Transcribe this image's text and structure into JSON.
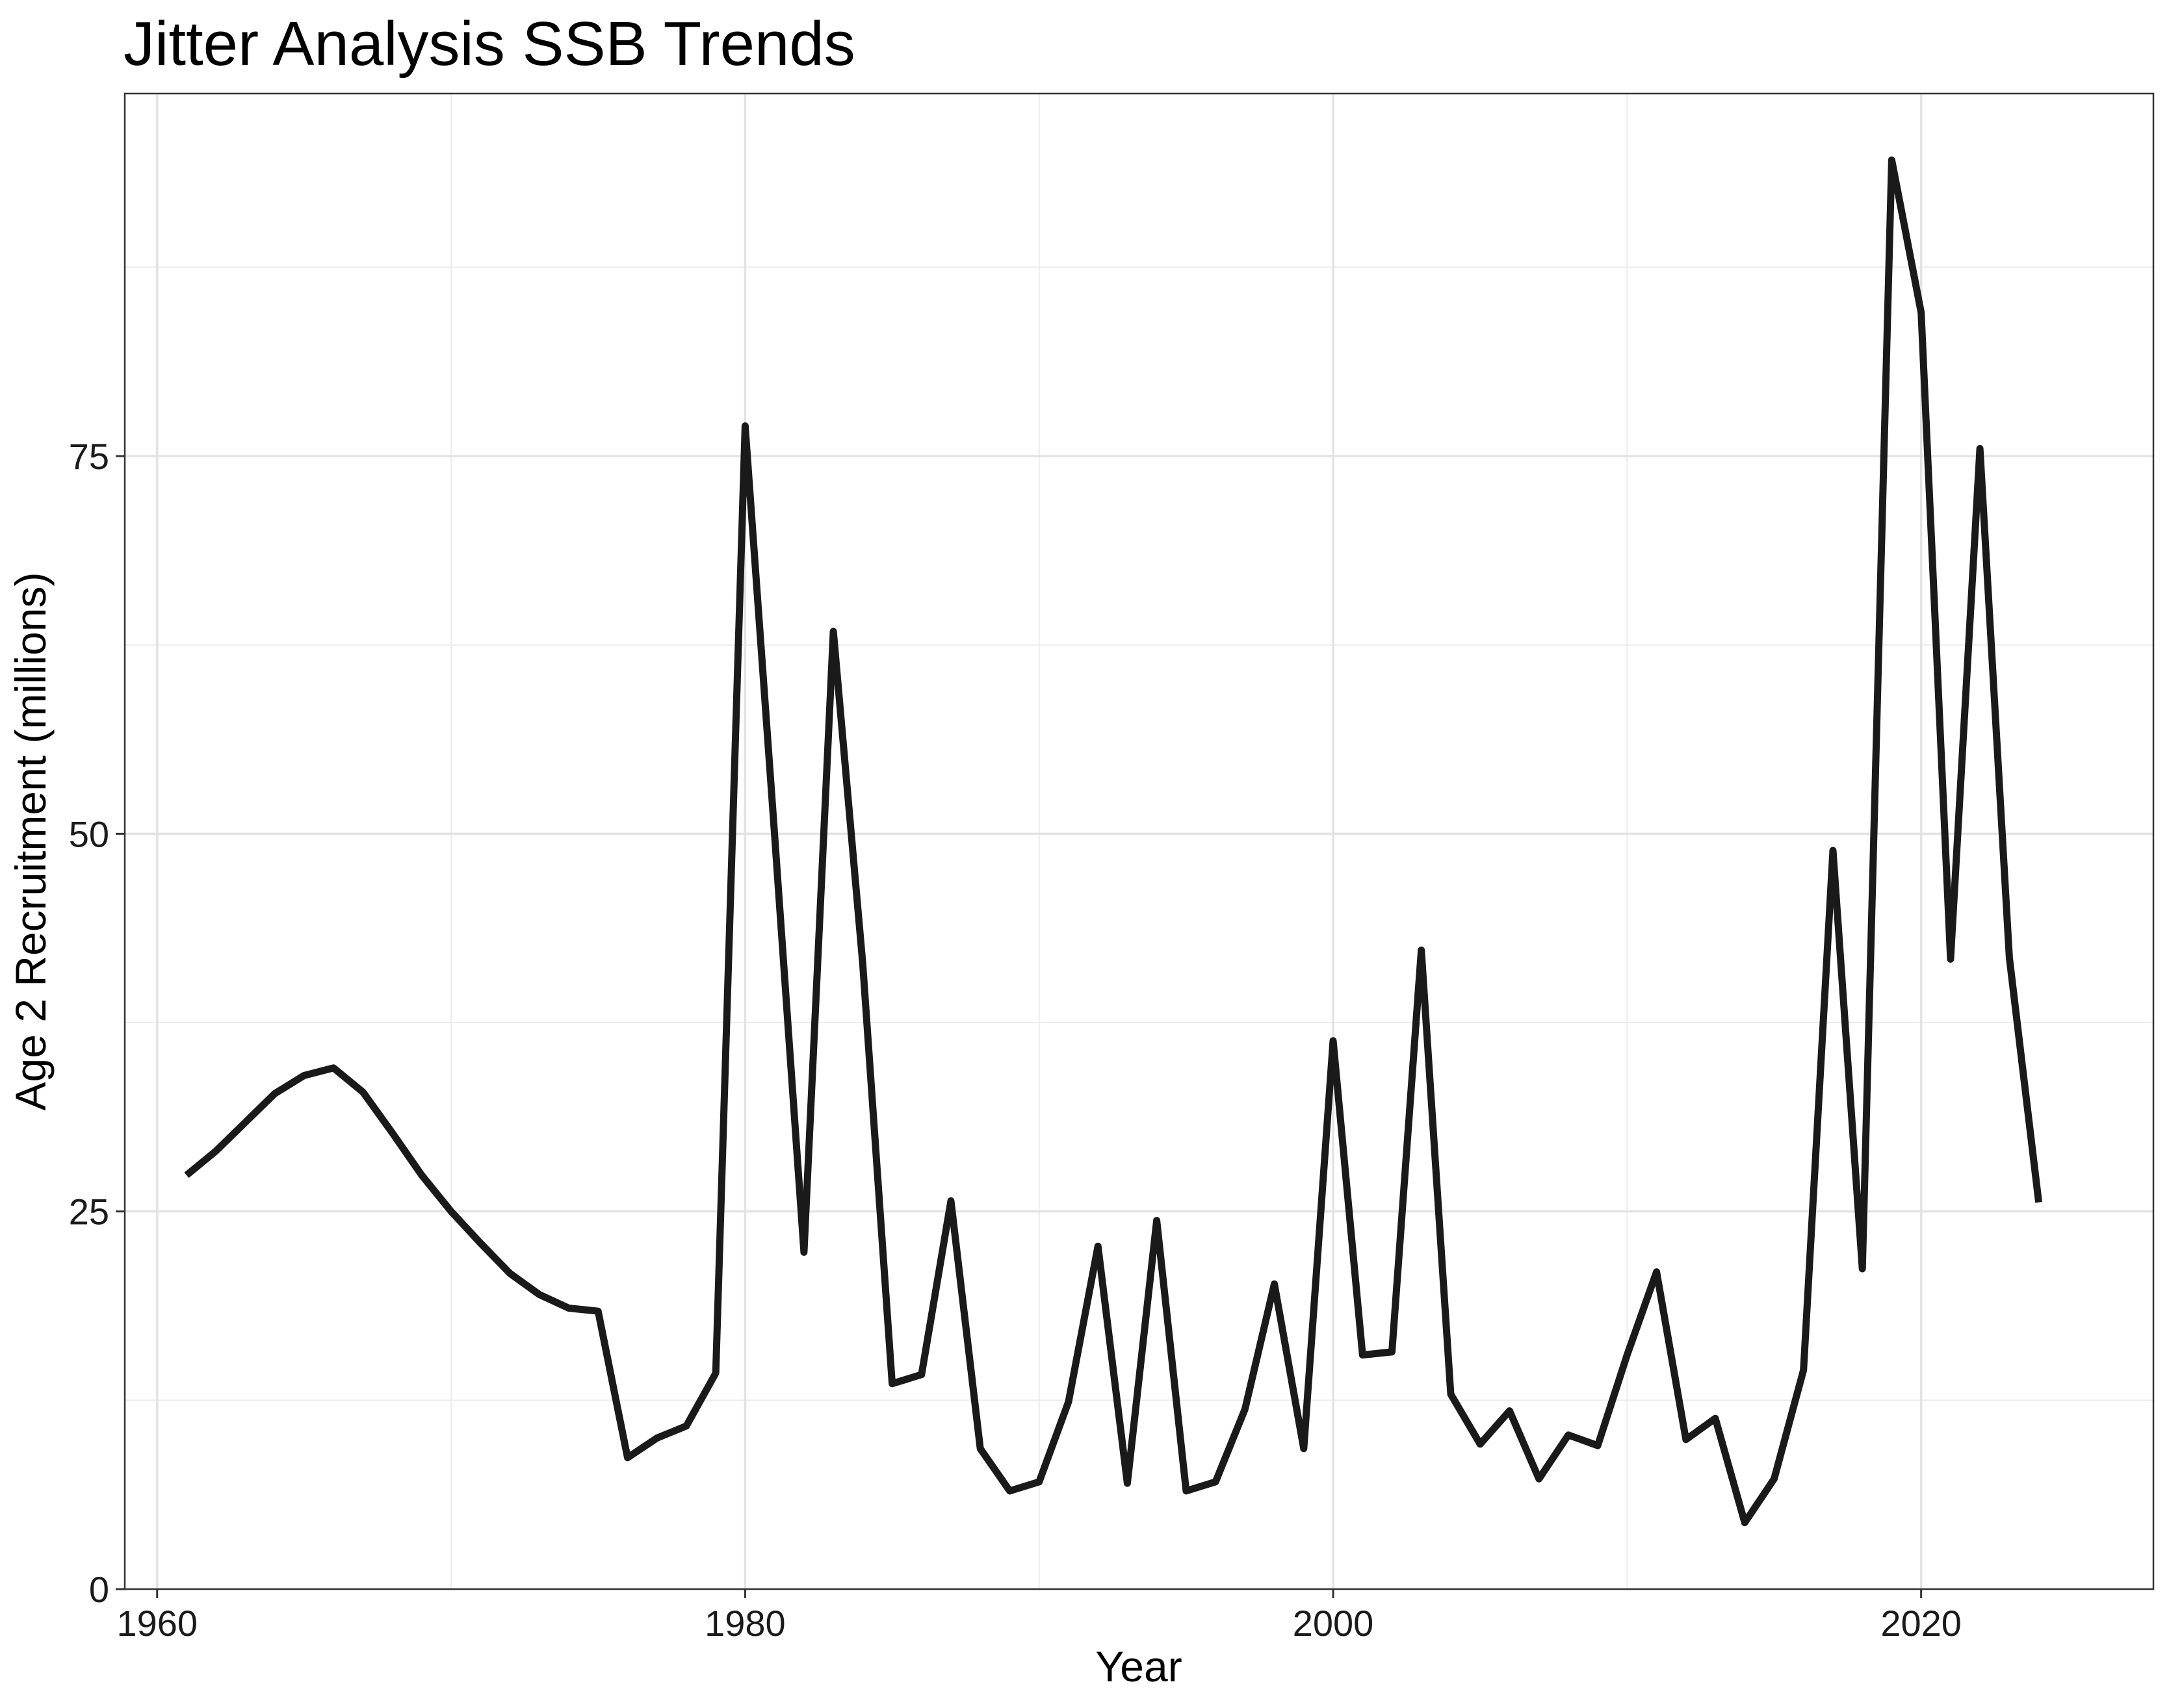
{
  "chart_data": {
    "type": "line",
    "title": "Jitter Analysis SSB Trends",
    "xlabel": "Year",
    "ylabel": "Age 2 Recruitment (millions)",
    "xlim": [
      1958.9,
      2027.9
    ],
    "ylim": [
      0,
      99
    ],
    "x_ticks": [
      1960,
      1980,
      2000,
      2020
    ],
    "x_tick_labels": [
      "1960",
      "1980",
      "2000",
      "2020"
    ],
    "y_ticks": [
      0,
      25,
      50,
      75
    ],
    "y_tick_labels": [
      "0",
      "25",
      "50",
      "75"
    ],
    "x_minor_gridlines": [
      1970,
      1990,
      2010
    ],
    "y_minor_gridlines": [
      12.5,
      37.5,
      62.5,
      87.5
    ],
    "grid": true,
    "legend": "none",
    "series": [
      {
        "color": "#1a1a1a",
        "x": [
          1961,
          1962,
          1963,
          1964,
          1965,
          1966,
          1967,
          1968,
          1969,
          1970,
          1971,
          1972,
          1973,
          1974,
          1975,
          1976,
          1977,
          1978,
          1979,
          1980,
          1981,
          1982,
          1983,
          1984,
          1985,
          1986,
          1987,
          1988,
          1989,
          1990,
          1991,
          1992,
          1993,
          1994,
          1995,
          1996,
          1997,
          1998,
          1999,
          2000,
          2001,
          2002,
          2003,
          2004,
          2005,
          2006,
          2007,
          2008,
          2009,
          2010,
          2011,
          2012,
          2013,
          2014,
          2015,
          2016,
          2017,
          2018,
          2019,
          2020,
          2021,
          2022,
          2023,
          2024
        ],
        "y": [
          27.4,
          29.0,
          30.9,
          32.8,
          34.0,
          34.5,
          32.9,
          30.2,
          27.4,
          25.0,
          22.9,
          20.9,
          19.5,
          18.6,
          18.4,
          8.7,
          10.0,
          10.8,
          14.3,
          77.0,
          50.0,
          22.3,
          63.4,
          41.4,
          13.6,
          14.2,
          25.7,
          9.3,
          6.5,
          7.1,
          12.4,
          22.7,
          7.0,
          24.4,
          6.5,
          7.1,
          11.9,
          20.2,
          9.3,
          36.3,
          15.5,
          15.7,
          42.3,
          12.9,
          9.6,
          11.8,
          7.3,
          10.2,
          9.5,
          15.5,
          21.0,
          9.9,
          11.3,
          4.4,
          7.3,
          14.5,
          48.9,
          21.2,
          94.6,
          84.5,
          41.7,
          75.5,
          41.8,
          25.6
        ]
      }
    ]
  }
}
